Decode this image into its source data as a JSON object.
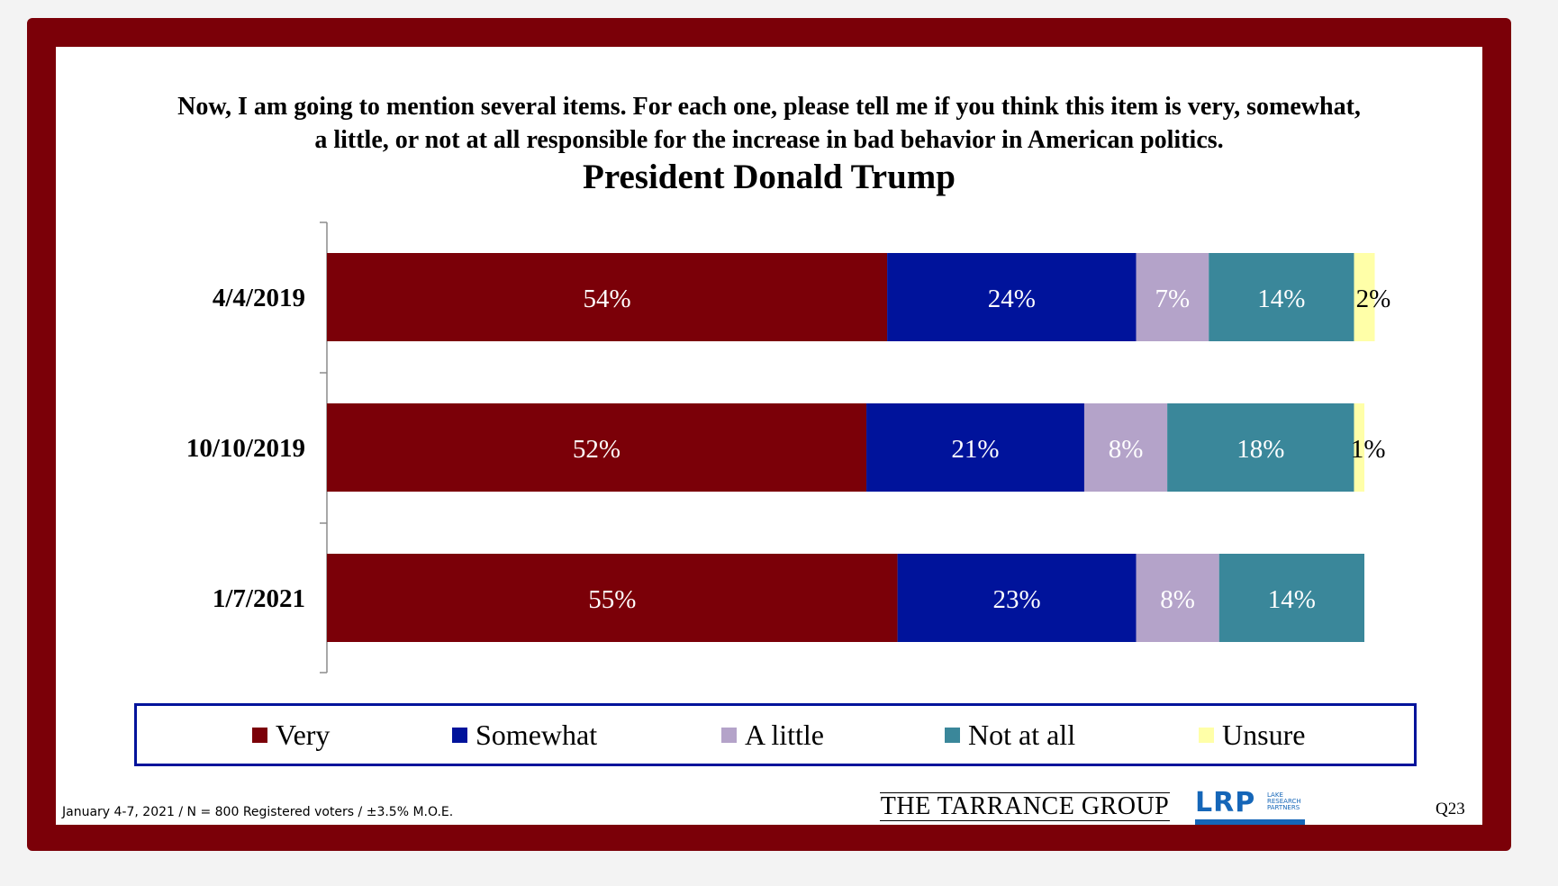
{
  "question": {
    "line1": "Now, I am going to mention several items.  For each one, please tell me if you think this item is very, somewhat,",
    "line2": "a little, or not at all responsible for the increase in bad behavior in American politics."
  },
  "chart_data": {
    "type": "bar",
    "orientation": "horizontal",
    "stacked": true,
    "title": "President Donald Trump",
    "categories": [
      "4/4/2019",
      "10/10/2019",
      "1/7/2021"
    ],
    "series": [
      {
        "name": "Very",
        "color": "#7b0008",
        "values": [
          54,
          52,
          55
        ],
        "labels": [
          "54%",
          "52%",
          "55%"
        ]
      },
      {
        "name": "Somewhat",
        "color": "#00139b",
        "values": [
          24,
          21,
          23
        ],
        "labels": [
          "24%",
          "21%",
          "23%"
        ]
      },
      {
        "name": "A little",
        "color": "#b4a3c9",
        "values": [
          7,
          8,
          8
        ],
        "labels": [
          "7%",
          "8%",
          "8%"
        ]
      },
      {
        "name": "Not at all",
        "color": "#3a879a",
        "values": [
          14,
          18,
          14
        ],
        "labels": [
          "14%",
          "18%",
          "14%"
        ]
      },
      {
        "name": "Unsure",
        "color": "#ffffa8",
        "values": [
          2,
          1,
          0
        ],
        "labels": [
          "2%",
          "1%",
          ""
        ]
      }
    ],
    "xlim": [
      0,
      100
    ],
    "legend": "bottom"
  },
  "legend": {
    "items": [
      {
        "label": "Very",
        "color": "#7b0008"
      },
      {
        "label": "Somewhat",
        "color": "#00139b"
      },
      {
        "label": "A little",
        "color": "#b4a3c9"
      },
      {
        "label": "Not at all",
        "color": "#3a879a"
      },
      {
        "label": "Unsure",
        "color": "#ffffa8"
      }
    ]
  },
  "footer": {
    "footnote": "January 4-7, 2021 / N = 800 Registered voters / ±3.5% M.O.E.",
    "tarrance": "THE TARRANCE GROUP",
    "lrp_mark": "LRP",
    "lrp_sub": "LAKE RESEARCH PARTNERS",
    "question_number": "Q23"
  }
}
